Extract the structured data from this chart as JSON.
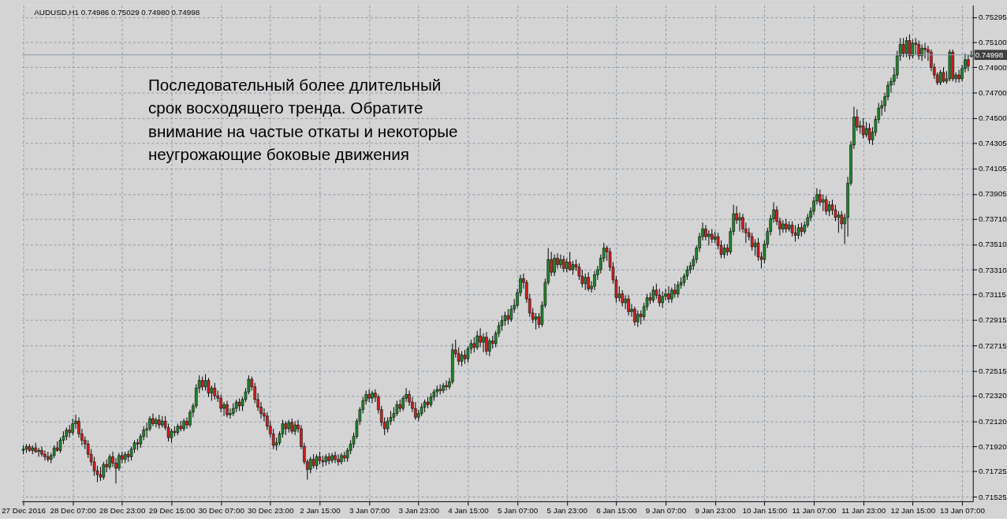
{
  "chart_data": {
    "type": "candlestick",
    "title": "AUDUSD,H1  0.74986 0.75029 0.74980 0.74998",
    "annotations": [
      "Последовательный более длительный\nсрок восходящего тренда. Обратите\nвнимание на частые откаты и некоторые\nнеугрожающие боковые движения"
    ],
    "categories": [
      "27 Dec 2016",
      null,
      null,
      null,
      null,
      null,
      null,
      null,
      null,
      null,
      null,
      null,
      null,
      null,
      null,
      null,
      "28 Dec 07:00",
      null,
      null,
      null,
      null,
      null,
      null,
      null,
      null,
      null,
      null,
      null,
      null,
      null,
      null,
      null,
      "28 Dec 23:00",
      null,
      null,
      null,
      null,
      null,
      null,
      null,
      null,
      null,
      null,
      null,
      null,
      null,
      null,
      null,
      "29 Dec 15:00",
      null,
      null,
      null,
      null,
      null,
      null,
      null,
      null,
      null,
      null,
      null,
      null,
      null,
      null,
      null,
      "30 Dec 07:00",
      null,
      null,
      null,
      null,
      null,
      null,
      null,
      null,
      null,
      null,
      null,
      null,
      null,
      null,
      null,
      "30 Dec 23:00",
      null,
      null,
      null,
      null,
      null,
      null,
      null,
      null,
      null,
      null,
      null,
      null,
      null,
      null,
      null,
      "2 Jan 15:00",
      null,
      null,
      null,
      null,
      null,
      null,
      null,
      null,
      null,
      null,
      null,
      null,
      null,
      null,
      null,
      "3 Jan 07:00",
      null,
      null,
      null,
      null,
      null,
      null,
      null,
      null,
      null,
      null,
      null,
      null,
      null,
      null,
      null,
      "3 Jan 23:00",
      null,
      null,
      null,
      null,
      null,
      null,
      null,
      null,
      null,
      null,
      null,
      null,
      null,
      null,
      null,
      "4 Jan 15:00",
      null,
      null,
      null,
      null,
      null,
      null,
      null,
      null,
      null,
      null,
      null,
      null,
      null,
      null,
      null,
      "5 Jan 07:00",
      null,
      null,
      null,
      null,
      null,
      null,
      null,
      null,
      null,
      null,
      null,
      null,
      null,
      null,
      null,
      "5 Jan 23:00",
      null,
      null,
      null,
      null,
      null,
      null,
      null,
      null,
      null,
      null,
      null,
      null,
      null,
      null,
      null,
      "6 Jan 15:00",
      null,
      null,
      null,
      null,
      null,
      null,
      null,
      null,
      null,
      null,
      null,
      null,
      null,
      null,
      null,
      "9 Jan 07:00",
      null,
      null,
      null,
      null,
      null,
      null,
      null,
      null,
      null,
      null,
      null,
      null,
      null,
      null,
      null,
      "9 Jan 23:00",
      null,
      null,
      null,
      null,
      null,
      null,
      null,
      null,
      null,
      null,
      null,
      null,
      null,
      null,
      null,
      "10 Jan 15:00",
      null,
      null,
      null,
      null,
      null,
      null,
      null,
      null,
      null,
      null,
      null,
      null,
      null,
      null,
      null,
      "11 Jan 07:00",
      null,
      null,
      null,
      null,
      null,
      null,
      null,
      null,
      null,
      null,
      null,
      null,
      null,
      null,
      null,
      "11 Jan 23:00",
      null,
      null,
      null,
      null,
      null,
      null,
      null,
      null,
      null,
      null,
      null,
      null,
      null,
      null,
      null,
      "12 Jan 15:00",
      null,
      null,
      null,
      null,
      null,
      null,
      null,
      null,
      null,
      null,
      null,
      null,
      null,
      null,
      null,
      "13 Jan 07:00",
      null,
      null,
      null
    ],
    "ohlc": [
      [
        0.7189,
        0.7193,
        0.7186,
        0.719
      ],
      [
        0.719,
        0.7194,
        0.7187,
        0.7192
      ],
      [
        0.7192,
        0.7194,
        0.7188,
        0.7189
      ],
      [
        0.7189,
        0.7193,
        0.7186,
        0.7191
      ],
      [
        0.7191,
        0.7195,
        0.7187,
        0.7188
      ],
      [
        0.7188,
        0.7191,
        0.7184,
        0.7189
      ],
      [
        0.7189,
        0.7192,
        0.7184,
        0.7186
      ],
      [
        0.7186,
        0.7189,
        0.7181,
        0.7184
      ],
      [
        0.7184,
        0.7188,
        0.718,
        0.7182
      ],
      [
        0.7182,
        0.7187,
        0.7179,
        0.7185
      ],
      [
        0.7185,
        0.7193,
        0.7183,
        0.7191
      ],
      [
        0.7191,
        0.7196,
        0.7188,
        0.7189
      ],
      [
        0.7189,
        0.7199,
        0.7187,
        0.7197
      ],
      [
        0.7197,
        0.7204,
        0.7194,
        0.72
      ],
      [
        0.72,
        0.7207,
        0.7197,
        0.7205
      ],
      [
        0.7205,
        0.7209,
        0.7199,
        0.7203
      ],
      [
        0.7203,
        0.7214,
        0.7201,
        0.721
      ],
      [
        0.721,
        0.7217,
        0.7206,
        0.7212
      ],
      [
        0.7212,
        0.7215,
        0.7199,
        0.7202
      ],
      [
        0.7202,
        0.7206,
        0.7193,
        0.7197
      ],
      [
        0.7197,
        0.72,
        0.719,
        0.7194
      ],
      [
        0.7194,
        0.7197,
        0.7183,
        0.7186
      ],
      [
        0.7186,
        0.719,
        0.7177,
        0.718
      ],
      [
        0.718,
        0.7184,
        0.7169,
        0.7173
      ],
      [
        0.7173,
        0.7177,
        0.7164,
        0.717
      ],
      [
        0.717,
        0.7176,
        0.7165,
        0.7168
      ],
      [
        0.7168,
        0.718,
        0.7166,
        0.7178
      ],
      [
        0.7178,
        0.7182,
        0.7172,
        0.7176
      ],
      [
        0.7176,
        0.7186,
        0.7174,
        0.7184
      ],
      [
        0.7184,
        0.7188,
        0.7176,
        0.7179
      ],
      [
        0.7179,
        0.7183,
        0.7163,
        0.7175
      ],
      [
        0.7175,
        0.7187,
        0.7173,
        0.7185
      ],
      [
        0.7185,
        0.7188,
        0.7179,
        0.7182
      ],
      [
        0.7182,
        0.7188,
        0.7179,
        0.7186
      ],
      [
        0.7186,
        0.7189,
        0.718,
        0.7184
      ],
      [
        0.7184,
        0.7192,
        0.7181,
        0.719
      ],
      [
        0.719,
        0.7197,
        0.7187,
        0.7195
      ],
      [
        0.7195,
        0.7198,
        0.7189,
        0.7194
      ],
      [
        0.7194,
        0.7202,
        0.7191,
        0.72
      ],
      [
        0.72,
        0.7208,
        0.7197,
        0.7205
      ],
      [
        0.7205,
        0.7211,
        0.7199,
        0.7206
      ],
      [
        0.7206,
        0.7216,
        0.7204,
        0.7214
      ],
      [
        0.7214,
        0.7218,
        0.7208,
        0.721
      ],
      [
        0.721,
        0.7215,
        0.7207,
        0.7213
      ],
      [
        0.7213,
        0.7217,
        0.7206,
        0.7209
      ],
      [
        0.7209,
        0.7216,
        0.7207,
        0.7212
      ],
      [
        0.7212,
        0.7216,
        0.7205,
        0.7207
      ],
      [
        0.7207,
        0.721,
        0.7196,
        0.7199
      ],
      [
        0.7199,
        0.7206,
        0.7195,
        0.7204
      ],
      [
        0.7204,
        0.7208,
        0.72,
        0.7203
      ],
      [
        0.7203,
        0.721,
        0.7201,
        0.7208
      ],
      [
        0.7208,
        0.7212,
        0.7204,
        0.7206
      ],
      [
        0.7206,
        0.7214,
        0.7204,
        0.7212
      ],
      [
        0.7212,
        0.7215,
        0.7206,
        0.7209
      ],
      [
        0.7209,
        0.7221,
        0.7207,
        0.7219
      ],
      [
        0.7219,
        0.7226,
        0.7215,
        0.7224
      ],
      [
        0.7224,
        0.7241,
        0.7222,
        0.7238
      ],
      [
        0.7238,
        0.7248,
        0.7234,
        0.7244
      ],
      [
        0.7244,
        0.7247,
        0.7236,
        0.7239
      ],
      [
        0.7239,
        0.7249,
        0.7236,
        0.7244
      ],
      [
        0.7244,
        0.7246,
        0.7231,
        0.7234
      ],
      [
        0.7234,
        0.724,
        0.7228,
        0.7238
      ],
      [
        0.7238,
        0.7242,
        0.7229,
        0.7232
      ],
      [
        0.7232,
        0.7236,
        0.7227,
        0.723
      ],
      [
        0.723,
        0.7233,
        0.7219,
        0.7222
      ],
      [
        0.7222,
        0.7227,
        0.7216,
        0.7225
      ],
      [
        0.7225,
        0.7228,
        0.7215,
        0.7217
      ],
      [
        0.7217,
        0.7222,
        0.7214,
        0.7218
      ],
      [
        0.7218,
        0.7226,
        0.7216,
        0.7222
      ],
      [
        0.7222,
        0.7229,
        0.7219,
        0.7227
      ],
      [
        0.7227,
        0.723,
        0.722,
        0.7224
      ],
      [
        0.7224,
        0.7231,
        0.722,
        0.7229
      ],
      [
        0.7229,
        0.7238,
        0.7227,
        0.7235
      ],
      [
        0.7235,
        0.7248,
        0.7233,
        0.7245
      ],
      [
        0.7245,
        0.7247,
        0.7236,
        0.7239
      ],
      [
        0.7239,
        0.7242,
        0.7226,
        0.7229
      ],
      [
        0.7229,
        0.7234,
        0.722,
        0.7223
      ],
      [
        0.7223,
        0.7227,
        0.7214,
        0.7218
      ],
      [
        0.7218,
        0.7222,
        0.7212,
        0.7216
      ],
      [
        0.7216,
        0.7219,
        0.7205,
        0.7208
      ],
      [
        0.7208,
        0.7212,
        0.7199,
        0.7202
      ],
      [
        0.7202,
        0.7206,
        0.719,
        0.7193
      ],
      [
        0.7193,
        0.7199,
        0.7189,
        0.7195
      ],
      [
        0.7195,
        0.7204,
        0.7193,
        0.7202
      ],
      [
        0.7202,
        0.7213,
        0.7199,
        0.721
      ],
      [
        0.721,
        0.7212,
        0.7201,
        0.7206
      ],
      [
        0.7206,
        0.7213,
        0.7203,
        0.7211
      ],
      [
        0.7211,
        0.7214,
        0.7202,
        0.7204
      ],
      [
        0.7204,
        0.7212,
        0.7201,
        0.7209
      ],
      [
        0.7209,
        0.7213,
        0.7203,
        0.7206
      ],
      [
        0.7206,
        0.7209,
        0.719,
        0.7192
      ],
      [
        0.7192,
        0.7195,
        0.7178,
        0.718
      ],
      [
        0.718,
        0.7182,
        0.7166,
        0.7174
      ],
      [
        0.7174,
        0.7184,
        0.7171,
        0.7182
      ],
      [
        0.7182,
        0.7186,
        0.7175,
        0.7177
      ],
      [
        0.7177,
        0.7186,
        0.7174,
        0.7184
      ],
      [
        0.7184,
        0.7188,
        0.7178,
        0.7181
      ],
      [
        0.7181,
        0.7185,
        0.7176,
        0.718
      ],
      [
        0.718,
        0.7186,
        0.7177,
        0.7184
      ],
      [
        0.7184,
        0.7187,
        0.7178,
        0.7181
      ],
      [
        0.7181,
        0.7187,
        0.7179,
        0.7185
      ],
      [
        0.7185,
        0.7188,
        0.7179,
        0.7182
      ],
      [
        0.7182,
        0.7186,
        0.7177,
        0.718
      ],
      [
        0.718,
        0.7187,
        0.7178,
        0.7185
      ],
      [
        0.7185,
        0.7188,
        0.718,
        0.7183
      ],
      [
        0.7183,
        0.7191,
        0.718,
        0.7189
      ],
      [
        0.7189,
        0.7197,
        0.7186,
        0.7194
      ],
      [
        0.7194,
        0.7203,
        0.7191,
        0.72
      ],
      [
        0.72,
        0.7214,
        0.7198,
        0.7212
      ],
      [
        0.7212,
        0.7223,
        0.7209,
        0.7221
      ],
      [
        0.7221,
        0.7231,
        0.7218,
        0.7228
      ],
      [
        0.7228,
        0.7236,
        0.7225,
        0.7233
      ],
      [
        0.7233,
        0.7237,
        0.7227,
        0.723
      ],
      [
        0.723,
        0.7236,
        0.7226,
        0.7234
      ],
      [
        0.7234,
        0.7237,
        0.7227,
        0.7231
      ],
      [
        0.7231,
        0.7233,
        0.7218,
        0.7221
      ],
      [
        0.7221,
        0.7224,
        0.7208,
        0.7211
      ],
      [
        0.7211,
        0.7215,
        0.7201,
        0.7206
      ],
      [
        0.7206,
        0.7215,
        0.7203,
        0.7212
      ],
      [
        0.7212,
        0.722,
        0.7209,
        0.7215
      ],
      [
        0.7215,
        0.7223,
        0.7212,
        0.7218
      ],
      [
        0.7218,
        0.7228,
        0.7216,
        0.7225
      ],
      [
        0.7225,
        0.7229,
        0.7219,
        0.7222
      ],
      [
        0.7222,
        0.7232,
        0.722,
        0.723
      ],
      [
        0.723,
        0.7238,
        0.7227,
        0.7233
      ],
      [
        0.7233,
        0.7236,
        0.7224,
        0.7227
      ],
      [
        0.7227,
        0.7231,
        0.7219,
        0.7222
      ],
      [
        0.7222,
        0.7227,
        0.7213,
        0.7215
      ],
      [
        0.7215,
        0.7221,
        0.7212,
        0.7218
      ],
      [
        0.7218,
        0.7226,
        0.7216,
        0.7223
      ],
      [
        0.7223,
        0.7229,
        0.7219,
        0.7227
      ],
      [
        0.7227,
        0.7231,
        0.7222,
        0.7225
      ],
      [
        0.7225,
        0.7234,
        0.7223,
        0.7231
      ],
      [
        0.7231,
        0.7237,
        0.7228,
        0.7235
      ],
      [
        0.7235,
        0.724,
        0.7231,
        0.7237
      ],
      [
        0.7237,
        0.7241,
        0.7233,
        0.7236
      ],
      [
        0.7236,
        0.7242,
        0.7234,
        0.724
      ],
      [
        0.724,
        0.7244,
        0.7236,
        0.7239
      ],
      [
        0.7239,
        0.7246,
        0.7237,
        0.7243
      ],
      [
        0.7243,
        0.7273,
        0.7241,
        0.7268
      ],
      [
        0.7268,
        0.7276,
        0.7262,
        0.7265
      ],
      [
        0.7265,
        0.727,
        0.7256,
        0.7259
      ],
      [
        0.7259,
        0.7267,
        0.7255,
        0.7264
      ],
      [
        0.7264,
        0.7268,
        0.7257,
        0.7261
      ],
      [
        0.7261,
        0.7271,
        0.7258,
        0.7269
      ],
      [
        0.7269,
        0.7276,
        0.7265,
        0.7273
      ],
      [
        0.7273,
        0.7278,
        0.7266,
        0.727
      ],
      [
        0.727,
        0.7283,
        0.7268,
        0.7279
      ],
      [
        0.7279,
        0.7285,
        0.727,
        0.7274
      ],
      [
        0.7274,
        0.7281,
        0.7266,
        0.7278
      ],
      [
        0.7278,
        0.7282,
        0.7264,
        0.7267
      ],
      [
        0.7267,
        0.7277,
        0.7263,
        0.7275
      ],
      [
        0.7275,
        0.7279,
        0.7269,
        0.7273
      ],
      [
        0.7273,
        0.7283,
        0.727,
        0.7281
      ],
      [
        0.7281,
        0.729,
        0.7278,
        0.7287
      ],
      [
        0.7287,
        0.7295,
        0.7283,
        0.7291
      ],
      [
        0.7291,
        0.7298,
        0.7287,
        0.7295
      ],
      [
        0.7295,
        0.73,
        0.7288,
        0.7292
      ],
      [
        0.7292,
        0.7303,
        0.729,
        0.73
      ],
      [
        0.73,
        0.7308,
        0.7297,
        0.7303
      ],
      [
        0.7303,
        0.7316,
        0.7301,
        0.7313
      ],
      [
        0.7313,
        0.7327,
        0.731,
        0.7324
      ],
      [
        0.7324,
        0.7328,
        0.7316,
        0.7321
      ],
      [
        0.7321,
        0.7323,
        0.7305,
        0.7308
      ],
      [
        0.7308,
        0.7312,
        0.7294,
        0.7297
      ],
      [
        0.7297,
        0.7301,
        0.7289,
        0.7292
      ],
      [
        0.7292,
        0.7297,
        0.7284,
        0.7294
      ],
      [
        0.7294,
        0.7297,
        0.7285,
        0.7288
      ],
      [
        0.7288,
        0.7306,
        0.7286,
        0.7303
      ],
      [
        0.7303,
        0.7324,
        0.7301,
        0.7321
      ],
      [
        0.7321,
        0.7348,
        0.7319,
        0.7339
      ],
      [
        0.7339,
        0.7345,
        0.7326,
        0.7329
      ],
      [
        0.7329,
        0.7343,
        0.7326,
        0.734
      ],
      [
        0.734,
        0.7344,
        0.7332,
        0.7335
      ],
      [
        0.7335,
        0.7343,
        0.7332,
        0.7339
      ],
      [
        0.7339,
        0.7342,
        0.7329,
        0.7332
      ],
      [
        0.7332,
        0.734,
        0.7329,
        0.7337
      ],
      [
        0.7337,
        0.7345,
        0.733,
        0.7331
      ],
      [
        0.7331,
        0.7338,
        0.7327,
        0.7335
      ],
      [
        0.7335,
        0.7339,
        0.733,
        0.7333
      ],
      [
        0.7333,
        0.7336,
        0.7323,
        0.7326
      ],
      [
        0.7326,
        0.7331,
        0.7317,
        0.732
      ],
      [
        0.732,
        0.7328,
        0.7315,
        0.7325
      ],
      [
        0.7325,
        0.7329,
        0.7314,
        0.7316
      ],
      [
        0.7316,
        0.7322,
        0.7313,
        0.7318
      ],
      [
        0.7318,
        0.733,
        0.7315,
        0.7327
      ],
      [
        0.7327,
        0.7334,
        0.7323,
        0.7331
      ],
      [
        0.7331,
        0.7343,
        0.7328,
        0.734
      ],
      [
        0.734,
        0.7352,
        0.7337,
        0.7348
      ],
      [
        0.7348,
        0.735,
        0.7338,
        0.7345
      ],
      [
        0.7345,
        0.7348,
        0.733,
        0.7333
      ],
      [
        0.7333,
        0.7337,
        0.732,
        0.7323
      ],
      [
        0.7323,
        0.7326,
        0.7305,
        0.7309
      ],
      [
        0.7309,
        0.7318,
        0.7306,
        0.7312
      ],
      [
        0.7312,
        0.7315,
        0.7302,
        0.7305
      ],
      [
        0.7305,
        0.7311,
        0.73,
        0.7308
      ],
      [
        0.7308,
        0.7311,
        0.7295,
        0.7298
      ],
      [
        0.7298,
        0.7304,
        0.7294,
        0.73
      ],
      [
        0.73,
        0.7302,
        0.7287,
        0.729
      ],
      [
        0.729,
        0.7299,
        0.7286,
        0.7296
      ],
      [
        0.7296,
        0.7299,
        0.7288,
        0.7294
      ],
      [
        0.7294,
        0.7305,
        0.7291,
        0.7302
      ],
      [
        0.7302,
        0.7312,
        0.7299,
        0.7309
      ],
      [
        0.7309,
        0.7313,
        0.7304,
        0.7307
      ],
      [
        0.7307,
        0.7318,
        0.7305,
        0.7315
      ],
      [
        0.7315,
        0.732,
        0.7308,
        0.7311
      ],
      [
        0.7311,
        0.7316,
        0.7302,
        0.7305
      ],
      [
        0.7305,
        0.7314,
        0.7301,
        0.731
      ],
      [
        0.731,
        0.7316,
        0.7307,
        0.7312
      ],
      [
        0.7312,
        0.7318,
        0.7305,
        0.7308
      ],
      [
        0.7308,
        0.7317,
        0.7305,
        0.7315
      ],
      [
        0.7315,
        0.732,
        0.7309,
        0.7312
      ],
      [
        0.7312,
        0.7322,
        0.7309,
        0.7319
      ],
      [
        0.7319,
        0.7325,
        0.7316,
        0.7321
      ],
      [
        0.7321,
        0.7328,
        0.7318,
        0.7326
      ],
      [
        0.7326,
        0.7334,
        0.7323,
        0.7331
      ],
      [
        0.7331,
        0.7337,
        0.7328,
        0.7334
      ],
      [
        0.7334,
        0.7342,
        0.7331,
        0.7339
      ],
      [
        0.7339,
        0.735,
        0.7336,
        0.7348
      ],
      [
        0.7348,
        0.736,
        0.7345,
        0.7357
      ],
      [
        0.7357,
        0.7368,
        0.7354,
        0.7363
      ],
      [
        0.7363,
        0.7366,
        0.7354,
        0.7357
      ],
      [
        0.7357,
        0.7362,
        0.735,
        0.7359
      ],
      [
        0.7359,
        0.7363,
        0.7352,
        0.7355
      ],
      [
        0.7355,
        0.7361,
        0.7352,
        0.7357
      ],
      [
        0.7357,
        0.736,
        0.7347,
        0.735
      ],
      [
        0.735,
        0.7354,
        0.734,
        0.7343
      ],
      [
        0.7343,
        0.7351,
        0.734,
        0.7348
      ],
      [
        0.7348,
        0.7351,
        0.7342,
        0.7345
      ],
      [
        0.7345,
        0.7364,
        0.7343,
        0.7361
      ],
      [
        0.7361,
        0.7382,
        0.7358,
        0.7375
      ],
      [
        0.7375,
        0.7381,
        0.7367,
        0.737
      ],
      [
        0.737,
        0.7376,
        0.7361,
        0.7372
      ],
      [
        0.7372,
        0.7375,
        0.736,
        0.7363
      ],
      [
        0.7363,
        0.7368,
        0.7352,
        0.736
      ],
      [
        0.736,
        0.7364,
        0.7354,
        0.7357
      ],
      [
        0.7357,
        0.736,
        0.7346,
        0.7349
      ],
      [
        0.7349,
        0.7355,
        0.7342,
        0.7352
      ],
      [
        0.7352,
        0.7356,
        0.7338,
        0.7341
      ],
      [
        0.7341,
        0.7345,
        0.7332,
        0.7339
      ],
      [
        0.7339,
        0.7354,
        0.7336,
        0.7351
      ],
      [
        0.7351,
        0.7364,
        0.7348,
        0.7361
      ],
      [
        0.7361,
        0.7374,
        0.7358,
        0.7371
      ],
      [
        0.7371,
        0.7384,
        0.7368,
        0.7378
      ],
      [
        0.7378,
        0.7381,
        0.7366,
        0.7369
      ],
      [
        0.7369,
        0.7372,
        0.7358,
        0.7363
      ],
      [
        0.7363,
        0.737,
        0.736,
        0.7367
      ],
      [
        0.7367,
        0.7371,
        0.736,
        0.7363
      ],
      [
        0.7363,
        0.7369,
        0.7361,
        0.7366
      ],
      [
        0.7366,
        0.7369,
        0.7357,
        0.736
      ],
      [
        0.736,
        0.7366,
        0.7353,
        0.7358
      ],
      [
        0.7358,
        0.7367,
        0.7355,
        0.7364
      ],
      [
        0.7364,
        0.7368,
        0.7357,
        0.7361
      ],
      [
        0.7361,
        0.7369,
        0.7359,
        0.7366
      ],
      [
        0.7366,
        0.7375,
        0.7364,
        0.7372
      ],
      [
        0.7372,
        0.738,
        0.7369,
        0.7377
      ],
      [
        0.7377,
        0.7388,
        0.7374,
        0.7385
      ],
      [
        0.7385,
        0.7395,
        0.7382,
        0.739
      ],
      [
        0.739,
        0.7394,
        0.7381,
        0.7384
      ],
      [
        0.7384,
        0.739,
        0.7377,
        0.7386
      ],
      [
        0.7386,
        0.7389,
        0.7374,
        0.7377
      ],
      [
        0.7377,
        0.7385,
        0.7373,
        0.7382
      ],
      [
        0.7382,
        0.7386,
        0.7374,
        0.7378
      ],
      [
        0.7378,
        0.7382,
        0.7369,
        0.7372
      ],
      [
        0.7372,
        0.7377,
        0.736,
        0.7374
      ],
      [
        0.7374,
        0.7377,
        0.7363,
        0.7367
      ],
      [
        0.7367,
        0.7375,
        0.7351,
        0.7372
      ],
      [
        0.7372,
        0.7404,
        0.7357,
        0.7399
      ],
      [
        0.7399,
        0.7432,
        0.7397,
        0.7429
      ],
      [
        0.7429,
        0.7459,
        0.7426,
        0.7451
      ],
      [
        0.7451,
        0.7457,
        0.744,
        0.7443
      ],
      [
        0.7443,
        0.7448,
        0.7438,
        0.7444
      ],
      [
        0.7444,
        0.745,
        0.7434,
        0.7437
      ],
      [
        0.7437,
        0.7447,
        0.7435,
        0.7442
      ],
      [
        0.7442,
        0.7446,
        0.743,
        0.7433
      ],
      [
        0.7433,
        0.7443,
        0.7429,
        0.7439
      ],
      [
        0.7439,
        0.7452,
        0.7436,
        0.7449
      ],
      [
        0.7449,
        0.7462,
        0.7446,
        0.7458
      ],
      [
        0.7458,
        0.7464,
        0.7452,
        0.746
      ],
      [
        0.746,
        0.747,
        0.7455,
        0.7467
      ],
      [
        0.7467,
        0.7479,
        0.7464,
        0.7476
      ],
      [
        0.7476,
        0.7482,
        0.747,
        0.7479
      ],
      [
        0.7479,
        0.749,
        0.7476,
        0.7484
      ],
      [
        0.7484,
        0.7503,
        0.7481,
        0.7499
      ],
      [
        0.7499,
        0.7513,
        0.7495,
        0.7508
      ],
      [
        0.7508,
        0.7513,
        0.7498,
        0.7501
      ],
      [
        0.7501,
        0.7514,
        0.7498,
        0.7511
      ],
      [
        0.7511,
        0.7516,
        0.7496,
        0.7499
      ],
      [
        0.7499,
        0.7512,
        0.7497,
        0.7509
      ],
      [
        0.7509,
        0.7513,
        0.75,
        0.7508
      ],
      [
        0.7508,
        0.7511,
        0.7496,
        0.7499
      ],
      [
        0.7499,
        0.7508,
        0.7495,
        0.7505
      ],
      [
        0.7505,
        0.7509,
        0.7497,
        0.7504
      ],
      [
        0.7504,
        0.7507,
        0.7495,
        0.7502
      ],
      [
        0.7502,
        0.7504,
        0.7487,
        0.749
      ],
      [
        0.749,
        0.7493,
        0.7481,
        0.7484
      ],
      [
        0.7484,
        0.7486,
        0.7476,
        0.7478
      ],
      [
        0.7478,
        0.7488,
        0.7476,
        0.7486
      ],
      [
        0.7486,
        0.749,
        0.7478,
        0.7479
      ],
      [
        0.7479,
        0.7487,
        0.7477,
        0.7481
      ],
      [
        0.7481,
        0.7504,
        0.7479,
        0.7502
      ],
      [
        0.7502,
        0.7504,
        0.7479,
        0.7481
      ],
      [
        0.7481,
        0.7486,
        0.7478,
        0.7484
      ],
      [
        0.7484,
        0.7488,
        0.7478,
        0.7481
      ],
      [
        0.7481,
        0.7492,
        0.7479,
        0.7489
      ],
      [
        0.7489,
        0.7501,
        0.7486,
        0.7496
      ],
      [
        0.7496,
        0.75,
        0.7487,
        0.7491
      ],
      [
        0.74986,
        0.75029,
        0.7498,
        0.74998
      ]
    ],
    "colors": [
      "#1f8a2c",
      "#1f8a2c",
      "#d42020",
      "#1f8a2c",
      "#d42020",
      "#1f8a2c",
      "#d42020",
      "#d42020",
      "#d42020",
      "#1f8a2c",
      "#1f8a2c",
      "#d42020",
      "#1f8a2c",
      "#1f8a2c",
      "#1f8a2c",
      "#d42020",
      "#1f8a2c",
      "#1f8a2c",
      "#d42020",
      "#d42020",
      "#d42020",
      "#d42020",
      "#d42020",
      "#d42020",
      "#d42020",
      "#d42020",
      "#1f8a2c",
      "#d42020",
      "#1f8a2c",
      "#d42020",
      "#d42020",
      "#1f8a2c",
      "#d42020",
      "#1f8a2c",
      "#d42020",
      "#1f8a2c",
      "#1f8a2c",
      "#d42020",
      "#1f8a2c",
      "#1f8a2c",
      "#1f8a2c",
      "#1f8a2c",
      "#d42020",
      "#1f8a2c",
      "#d42020",
      "#1f8a2c",
      "#d42020",
      "#d42020",
      "#1f8a2c",
      "#d42020",
      "#1f8a2c",
      "#d42020",
      "#1f8a2c",
      "#d42020",
      "#1f8a2c",
      "#1f8a2c",
      "#1f8a2c",
      "#1f8a2c",
      "#d42020",
      "#1f8a2c",
      "#d42020",
      "#1f8a2c",
      "#d42020",
      "#d42020",
      "#d42020",
      "#1f8a2c",
      "#d42020",
      "#1f8a2c",
      "#1f8a2c",
      "#1f8a2c",
      "#d42020",
      "#1f8a2c",
      "#1f8a2c",
      "#1f8a2c",
      "#d42020",
      "#d42020",
      "#d42020",
      "#d42020",
      "#d42020",
      "#d42020",
      "#d42020",
      "#d42020",
      "#1f8a2c",
      "#1f8a2c",
      "#1f8a2c",
      "#d42020",
      "#1f8a2c",
      "#d42020",
      "#1f8a2c",
      "#d42020",
      "#d42020",
      "#d42020",
      "#d42020",
      "#1f8a2c",
      "#d42020",
      "#1f8a2c",
      "#d42020",
      "#d42020",
      "#1f8a2c",
      "#d42020",
      "#1f8a2c",
      "#d42020",
      "#d42020",
      "#1f8a2c",
      "#d42020",
      "#1f8a2c",
      "#1f8a2c",
      "#1f8a2c",
      "#1f8a2c",
      "#1f8a2c",
      "#1f8a2c",
      "#1f8a2c",
      "#d42020",
      "#1f8a2c",
      "#d42020",
      "#d42020",
      "#d42020",
      "#d42020",
      "#1f8a2c",
      "#1f8a2c",
      "#1f8a2c",
      "#1f8a2c",
      "#d42020",
      "#1f8a2c",
      "#1f8a2c",
      "#d42020",
      "#d42020",
      "#d42020",
      "#1f8a2c",
      "#1f8a2c",
      "#1f8a2c",
      "#d42020",
      "#1f8a2c",
      "#1f8a2c",
      "#1f8a2c",
      "#d42020",
      "#1f8a2c",
      "#d42020",
      "#1f8a2c",
      "#1f8a2c",
      "#d42020",
      "#d42020",
      "#1f8a2c",
      "#d42020",
      "#1f8a2c",
      "#1f8a2c",
      "#d42020",
      "#1f8a2c",
      "#d42020",
      "#1f8a2c",
      "#d42020",
      "#1f8a2c",
      "#d42020",
      "#1f8a2c",
      "#1f8a2c",
      "#1f8a2c",
      "#1f8a2c",
      "#d42020",
      "#1f8a2c",
      "#1f8a2c",
      "#1f8a2c",
      "#1f8a2c",
      "#d42020",
      "#d42020",
      "#d42020",
      "#d42020",
      "#1f8a2c",
      "#d42020",
      "#1f8a2c",
      "#1f8a2c",
      "#1f8a2c",
      "#d42020",
      "#1f8a2c",
      "#d42020",
      "#1f8a2c",
      "#d42020",
      "#1f8a2c",
      "#d42020",
      "#1f8a2c",
      "#d42020",
      "#d42020",
      "#d42020",
      "#1f8a2c",
      "#d42020",
      "#1f8a2c",
      "#1f8a2c",
      "#1f8a2c",
      "#1f8a2c",
      "#1f8a2c",
      "#d42020",
      "#d42020",
      "#d42020",
      "#d42020",
      "#1f8a2c",
      "#d42020",
      "#1f8a2c",
      "#d42020",
      "#1f8a2c",
      "#d42020",
      "#1f8a2c",
      "#d42020",
      "#1f8a2c",
      "#1f8a2c",
      "#d42020",
      "#1f8a2c",
      "#d42020",
      "#d42020",
      "#1f8a2c",
      "#1f8a2c",
      "#d42020",
      "#1f8a2c",
      "#d42020",
      "#1f8a2c",
      "#1f8a2c",
      "#1f8a2c",
      "#1f8a2c",
      "#1f8a2c",
      "#1f8a2c",
      "#1f8a2c",
      "#1f8a2c",
      "#1f8a2c",
      "#d42020",
      "#1f8a2c",
      "#d42020",
      "#1f8a2c",
      "#d42020",
      "#d42020",
      "#1f8a2c",
      "#d42020",
      "#1f8a2c",
      "#1f8a2c",
      "#d42020",
      "#1f8a2c",
      "#d42020",
      "#d42020",
      "#d42020",
      "#d42020",
      "#1f8a2c",
      "#d42020",
      "#d42020",
      "#1f8a2c",
      "#1f8a2c",
      "#1f8a2c",
      "#1f8a2c",
      "#d42020",
      "#d42020",
      "#1f8a2c",
      "#d42020",
      "#1f8a2c",
      "#d42020",
      "#d42020",
      "#1f8a2c",
      "#d42020",
      "#1f8a2c",
      "#1f8a2c",
      "#1f8a2c",
      "#1f8a2c",
      "#1f8a2c",
      "#d42020",
      "#1f8a2c",
      "#d42020",
      "#1f8a2c",
      "#d42020",
      "#d42020",
      "#1f8a2c",
      "#d42020",
      "#1f8a2c",
      "#1f8a2c",
      "#1f8a2c",
      "#1f8a2c",
      "#d42020",
      "#1f8a2c",
      "#d42020",
      "#1f8a2c",
      "#d42020",
      "#1f8a2c",
      "#1f8a2c",
      "#1f8a2c",
      "#1f8a2c",
      "#1f8a2c",
      "#1f8a2c",
      "#1f8a2c",
      "#1f8a2c",
      "#1f8a2c",
      "#1f8a2c",
      "#d42020",
      "#1f8a2c",
      "#d42020",
      "#1f8a2c",
      "#d42020",
      "#d42020",
      "#1f8a2c",
      "#d42020",
      "#d42020",
      "#d42020",
      "#d42020",
      "#d42020",
      "#1f8a2c",
      "#d42020",
      "#1f8a2c",
      "#1f8a2c",
      "#d42020",
      "#1f8a2c",
      "#d42020",
      "#1f8a2c",
      "#1f8a2c",
      "#d42020",
      "#1f8a2c"
    ],
    "ylim": [
      0.7149,
      0.7539
    ],
    "yticks": [
      {
        "value": 0.71525,
        "label": "0.71525"
      },
      {
        "value": 0.71725,
        "label": "0.71725"
      },
      {
        "value": 0.7192,
        "label": "0.71920"
      },
      {
        "value": 0.7212,
        "label": "0.72120"
      },
      {
        "value": 0.7232,
        "label": "0.72320"
      },
      {
        "value": 0.72515,
        "label": "0.72515"
      },
      {
        "value": 0.72715,
        "label": "0.72715"
      },
      {
        "value": 0.72915,
        "label": "0.72915"
      },
      {
        "value": 0.73115,
        "label": "0.73115"
      },
      {
        "value": 0.7331,
        "label": "0.73310"
      },
      {
        "value": 0.7351,
        "label": "0.73510"
      },
      {
        "value": 0.7371,
        "label": "0.73710"
      },
      {
        "value": 0.73905,
        "label": "0.73905"
      },
      {
        "value": 0.74105,
        "label": "0.74105"
      },
      {
        "value": 0.74305,
        "label": "0.74305"
      },
      {
        "value": 0.745,
        "label": "0.74500"
      },
      {
        "value": 0.747,
        "label": "0.74700"
      },
      {
        "value": 0.749,
        "label": "0.74900"
      },
      {
        "value": 0.751,
        "label": "0.75100"
      },
      {
        "value": 0.75295,
        "label": "0.75295"
      }
    ],
    "ref_lines": [
      {
        "axis": "y",
        "value": 0.74998,
        "label": "0.74998",
        "color": "#8a9aaa"
      }
    ],
    "grid": true
  }
}
